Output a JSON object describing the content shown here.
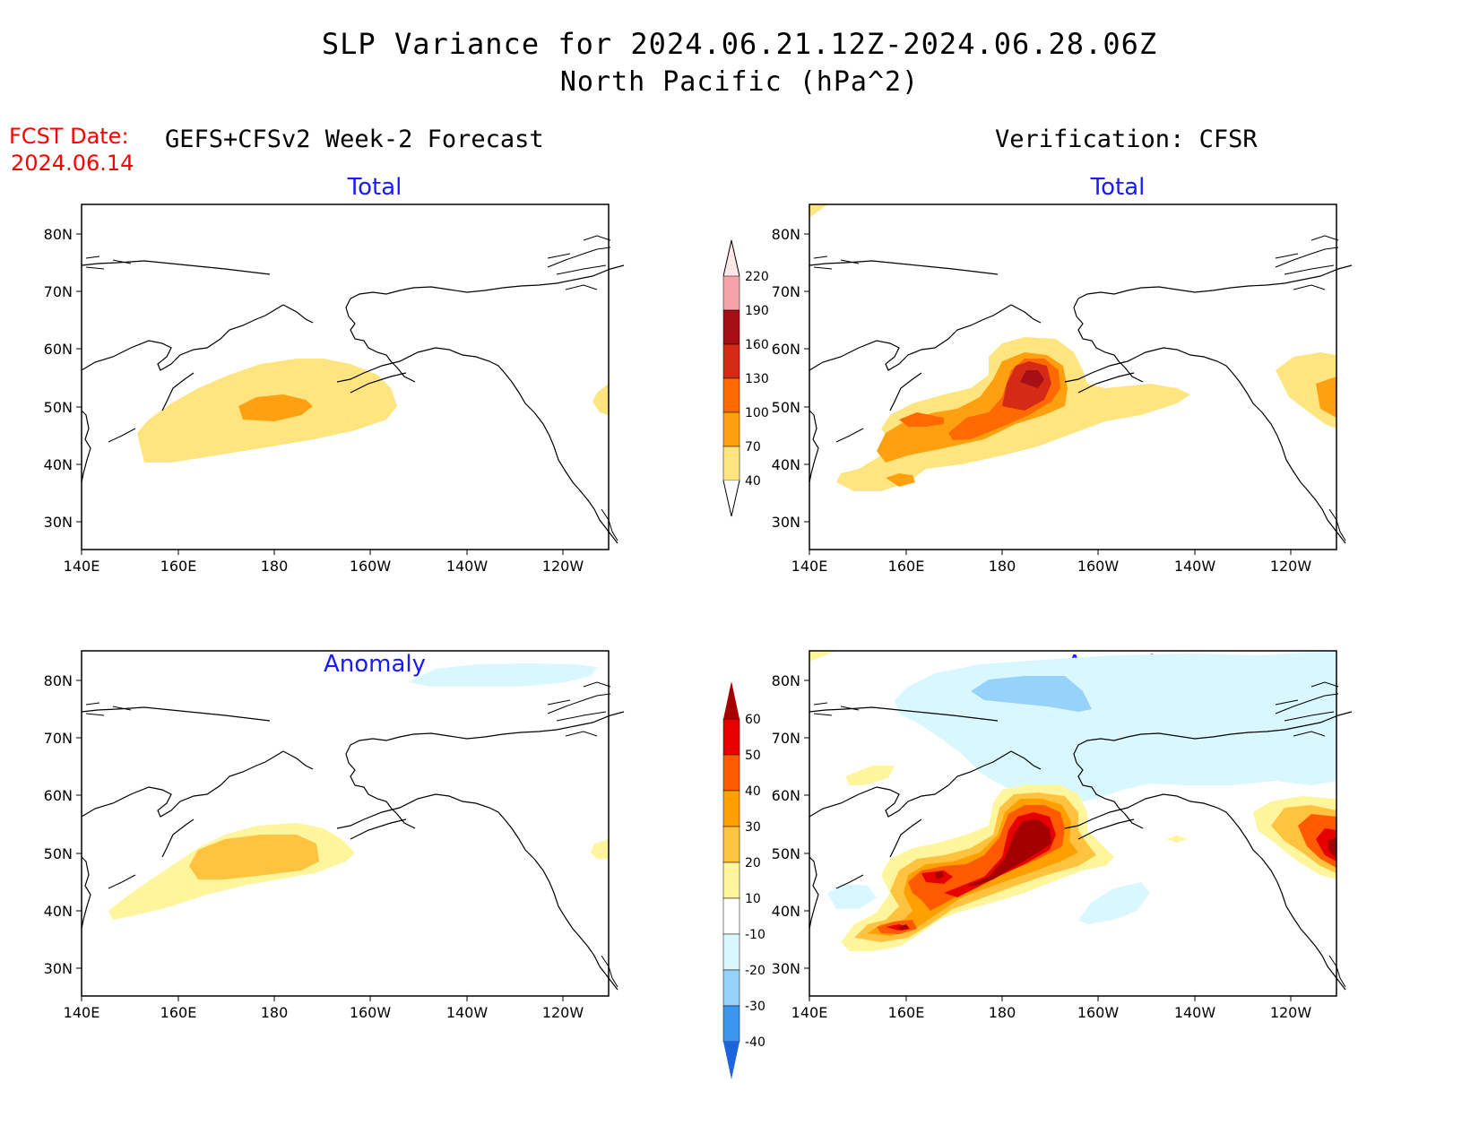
{
  "header": {
    "title_line1": "SLP Variance for 2024.06.21.12Z-2024.06.28.06Z",
    "title_line2": "North Pacific (hPa^2)",
    "fcst_label": "FCST Date:",
    "fcst_date": "2024.06.14",
    "left_heading": "GEFS+CFSv2 Week-2 Forecast",
    "right_heading": "Verification: CFSR"
  },
  "panels": {
    "fcst_total": {
      "title": "Total"
    },
    "verif_total": {
      "title": "Total"
    },
    "fcst_anom": {
      "title": "Anomaly"
    },
    "verif_anom": {
      "title": "Anomaly"
    }
  },
  "axes": {
    "lat_ticks": [
      "80N",
      "70N",
      "60N",
      "50N",
      "40N",
      "30N"
    ],
    "lon_ticks": [
      "140E",
      "160E",
      "180",
      "160W",
      "140W",
      "120W"
    ]
  },
  "colorbars": {
    "total": {
      "levels": [
        "220",
        "190",
        "160",
        "130",
        "100",
        "70",
        "40"
      ],
      "colors": [
        "#f4a3a8",
        "#a50f15",
        "#d42a16",
        "#ff6a00",
        "#ffa010",
        "#ffe57f"
      ]
    },
    "anomaly": {
      "levels": [
        "60",
        "50",
        "40",
        "30",
        "20",
        "10",
        "-10",
        "-20",
        "-30",
        "-40"
      ],
      "colors": [
        "#a50000",
        "#e60000",
        "#ff5a00",
        "#ffa000",
        "#ffc340",
        "#fff59d",
        "#ffffff",
        "#d8f7ff",
        "#96d2fa",
        "#3c96f0",
        "#1e64dc"
      ]
    }
  }
}
